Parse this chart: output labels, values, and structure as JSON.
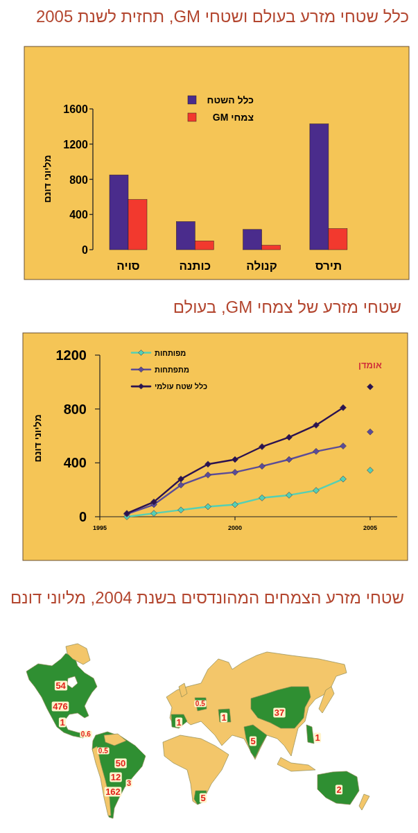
{
  "chart_data": [
    {
      "type": "bar",
      "title": "כלל שטחי מזרע בעולם ושטחי GM, תחזית לשנת 2005",
      "ylabel": "מליוני דונם",
      "categories": [
        "סויה",
        "כותנה",
        "קנולה",
        "תירס"
      ],
      "series": [
        {
          "name": "כלל השטח",
          "color": "#4a2c8c",
          "values": [
            850,
            320,
            230,
            1430
          ]
        },
        {
          "name": "צמחי GM",
          "color": "#f2392e",
          "values": [
            570,
            100,
            50,
            240
          ]
        }
      ],
      "ylim": [
        0,
        1600
      ],
      "yticks": [
        0,
        400,
        800,
        1200,
        1600
      ],
      "legend": "top"
    },
    {
      "type": "line",
      "title": "שטחי מזרע של צמחי GM, בעולם",
      "ylabel": "מליוני דונם",
      "x": [
        1996,
        1997,
        1998,
        1999,
        2000,
        2001,
        2002,
        2003,
        2004,
        null,
        2005
      ],
      "series": [
        {
          "name": "מפותחות",
          "color": "#55d0b4",
          "values": [
            0,
            25,
            50,
            75,
            90,
            140,
            160,
            195,
            280,
            null,
            345
          ]
        },
        {
          "name": "מתפתחות",
          "color": "#5b4c98",
          "values": [
            20,
            90,
            235,
            310,
            330,
            375,
            425,
            485,
            525,
            null,
            630
          ]
        },
        {
          "name": "כלל שטח עולמי",
          "color": "#2b1250",
          "values": [
            25,
            110,
            280,
            390,
            425,
            520,
            590,
            680,
            810,
            null,
            965
          ]
        }
      ],
      "xlim": [
        1995,
        2006
      ],
      "xticks": [
        1995,
        2000,
        2005
      ],
      "ylim": [
        0,
        1200
      ],
      "yticks": [
        0,
        400,
        800,
        1200
      ],
      "marker": "diamond",
      "legend": "top left",
      "annotations": [
        "אומדן"
      ]
    },
    {
      "type": "other",
      "title": "שטחי מזרע הצמחים המהונדסים בשנת 2004, מליוני דונם",
      "annotations": [
        "54",
        "476",
        "1",
        "0.6",
        "0.5",
        "50",
        "12",
        "3",
        "162",
        "0.5",
        "1",
        "1",
        "37",
        "5",
        "1",
        "2",
        "5"
      ]
    }
  ]
}
